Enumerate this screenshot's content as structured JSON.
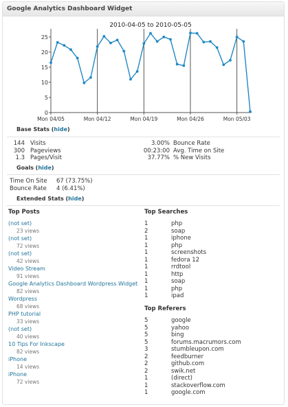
{
  "widget": {
    "title": "Google Analytics Dashboard Widget"
  },
  "chart_data": {
    "type": "line",
    "title": "2010-04-05 to 2010-05-05",
    "x": [
      "2010-04-05",
      "2010-04-06",
      "2010-04-07",
      "2010-04-08",
      "2010-04-09",
      "2010-04-10",
      "2010-04-11",
      "2010-04-12",
      "2010-04-13",
      "2010-04-14",
      "2010-04-15",
      "2010-04-16",
      "2010-04-17",
      "2010-04-18",
      "2010-04-19",
      "2010-04-20",
      "2010-04-21",
      "2010-04-22",
      "2010-04-23",
      "2010-04-24",
      "2010-04-25",
      "2010-04-26",
      "2010-04-27",
      "2010-04-28",
      "2010-04-29",
      "2010-04-30",
      "2010-05-01",
      "2010-05-02",
      "2010-05-03",
      "2010-05-04",
      "2010-05-05"
    ],
    "series": [
      {
        "values": [
          16.5,
          23.2,
          22.2,
          20.8,
          18,
          9.8,
          11.6,
          21.8,
          25.2,
          23,
          24,
          20.3,
          11,
          13.6,
          22.8,
          26.2,
          23.5,
          25,
          24.2,
          16,
          15.5,
          26.3,
          26.2,
          23.3,
          23.5,
          21.5,
          15.8,
          17.3,
          25,
          23.5,
          0.3
        ],
        "color": "#1f88c4"
      }
    ],
    "ylim": [
      0,
      27
    ],
    "yticks": [
      "0",
      "5",
      "10",
      "15",
      "20",
      "25"
    ],
    "xticks": [
      {
        "date": "2010-04-05",
        "label": "Mon 04/05"
      },
      {
        "date": "2010-04-12",
        "label": "Mon 04/12"
      },
      {
        "date": "2010-04-19",
        "label": "Mon 04/19"
      },
      {
        "date": "2010-04-26",
        "label": "Mon 04/26"
      },
      {
        "date": "2010-05-03",
        "label": "Mon 05/03"
      }
    ],
    "week_markers": [
      "2010-04-12",
      "2010-04-19",
      "2010-04-26",
      "2010-05-03"
    ],
    "grid": false
  },
  "base_stats": {
    "title": "Base Stats",
    "toggle": "hide",
    "rows": [
      {
        "left_num": "144",
        "left_label": "Visits",
        "right_num": "3.00%",
        "right_label": "Bounce Rate"
      },
      {
        "left_num": "300",
        "left_label": "Pageviews",
        "right_num": "00:23:00",
        "right_label": "Avg. Time on Site"
      },
      {
        "left_num": "1.3",
        "left_label": "Pages/Visit",
        "right_num": "37.77%",
        "right_label": "% New Visits"
      }
    ]
  },
  "goals": {
    "title": "Goals",
    "toggle": "hide",
    "rows": [
      {
        "label": "Time On Site",
        "value": "67 (73.75%)"
      },
      {
        "label": "Bounce Rate",
        "value": "4 (6.41%)"
      }
    ]
  },
  "extended": {
    "title": "Extended Stats",
    "toggle": "hide",
    "top_posts": {
      "title": "Top Posts",
      "items": [
        {
          "title": "(not set)",
          "views": "23 views"
        },
        {
          "title": "(not set)",
          "views": "72 views"
        },
        {
          "title": "(not set)",
          "views": "42 views"
        },
        {
          "title": "Video Stream",
          "views": "91 views"
        },
        {
          "title": "Google Analytics Dashboard Wordpress Widget",
          "views": "82 views"
        },
        {
          "title": "Wordpress",
          "views": "68 views"
        },
        {
          "title": "PHP tutorial",
          "views": "33 views"
        },
        {
          "title": "(not set)",
          "views": "40 views"
        },
        {
          "title": "10 Tips For Inkscape",
          "views": "82 views"
        },
        {
          "title": "iPhone",
          "views": "14 views"
        },
        {
          "title": "iPhone",
          "views": "72 views"
        }
      ]
    },
    "top_searches": {
      "title": "Top Searches",
      "items": [
        {
          "count": "1",
          "term": "php"
        },
        {
          "count": "2",
          "term": "soap"
        },
        {
          "count": "1",
          "term": "iphone"
        },
        {
          "count": "1",
          "term": "php"
        },
        {
          "count": "1",
          "term": "screenshots"
        },
        {
          "count": "1",
          "term": "fedora 12"
        },
        {
          "count": "1",
          "term": "rrdtool"
        },
        {
          "count": "1",
          "term": "http"
        },
        {
          "count": "1",
          "term": "soap"
        },
        {
          "count": "1",
          "term": "php"
        },
        {
          "count": "1",
          "term": "ipad"
        }
      ]
    },
    "top_referers": {
      "title": "Top Referers",
      "items": [
        {
          "count": "5",
          "site": "google"
        },
        {
          "count": "5",
          "site": "yahoo"
        },
        {
          "count": "5",
          "site": "bing"
        },
        {
          "count": "5",
          "site": "forums.macrumors.com"
        },
        {
          "count": "3",
          "site": "stumbleupon.com"
        },
        {
          "count": "2",
          "site": "feedburner"
        },
        {
          "count": "2",
          "site": "github.com"
        },
        {
          "count": "2",
          "site": "swik.net"
        },
        {
          "count": "1",
          "site": "(direct)"
        },
        {
          "count": "1",
          "site": "stackoverflow.com"
        },
        {
          "count": "1",
          "site": "google.com"
        }
      ]
    }
  }
}
